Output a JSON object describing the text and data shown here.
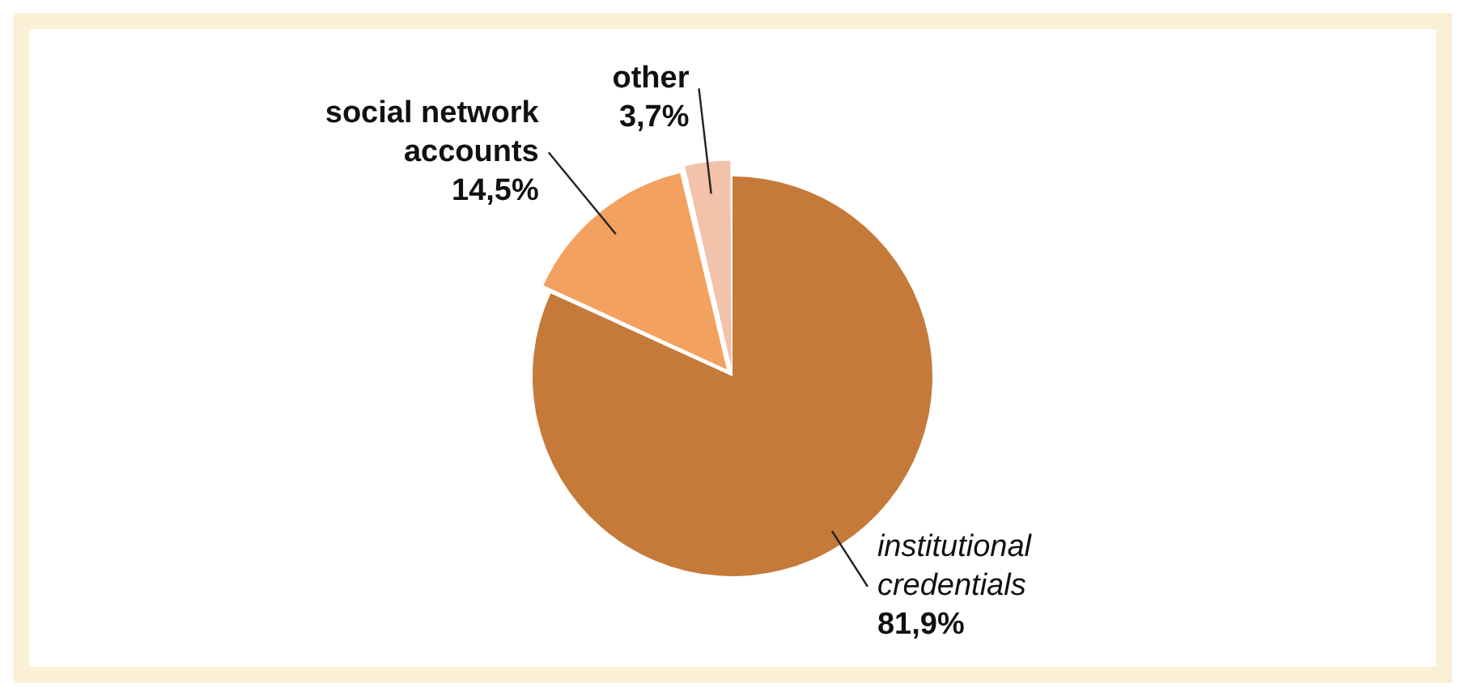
{
  "chart_data": {
    "type": "pie",
    "categories": [
      "institutional credentials",
      "social network accounts",
      "other"
    ],
    "values": [
      81.9,
      14.5,
      3.7
    ],
    "value_labels": [
      "81,9%",
      "14,5%",
      "3,7%"
    ],
    "colors": [
      "#c57a3a",
      "#f2a15e",
      "#f3c2aa"
    ],
    "legend": false
  }
}
